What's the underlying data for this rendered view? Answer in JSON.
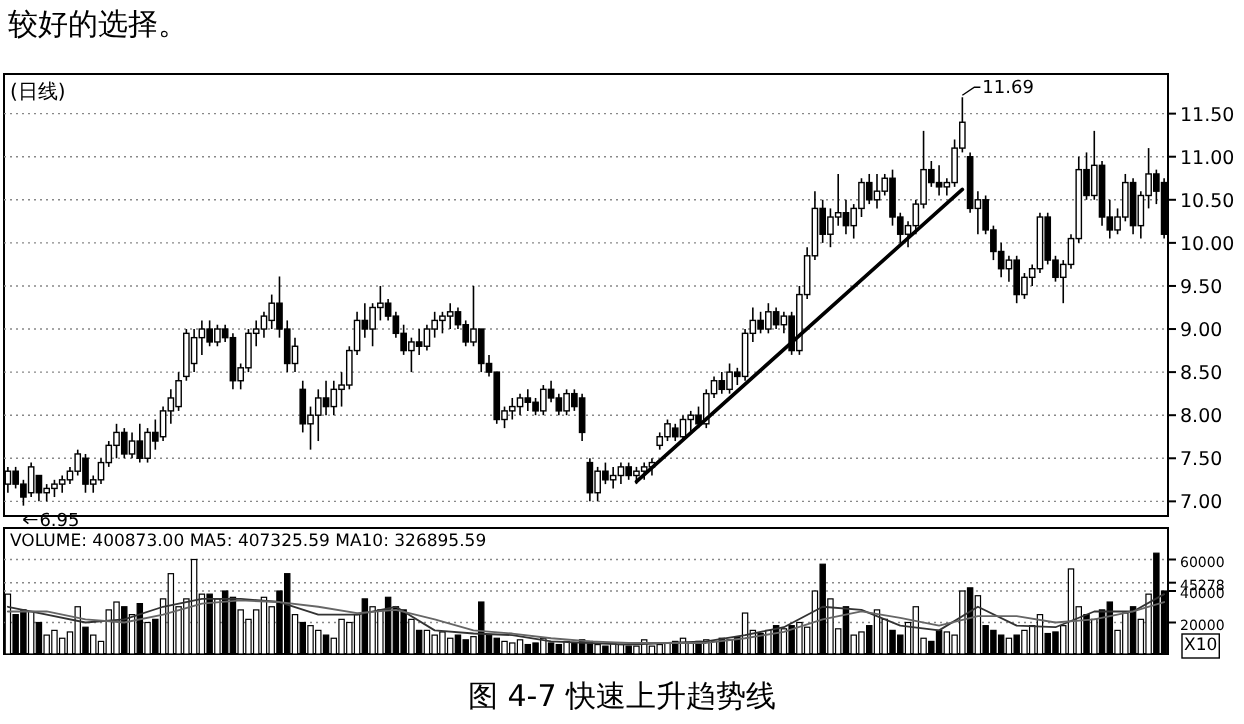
{
  "chart_data": [
    {
      "type": "candlestick",
      "title": "(日线)",
      "annotations": [
        "较好的选择。",
        "11.69",
        "6.95"
      ],
      "categories": [
        null,
        null,
        null,
        null,
        null,
        null,
        null,
        null,
        null,
        null,
        null,
        null,
        null,
        null,
        null,
        null,
        null,
        null,
        null,
        null,
        null,
        null,
        null,
        null,
        null,
        null,
        null,
        null,
        null,
        null,
        null,
        null,
        null,
        null,
        null,
        null,
        null,
        null,
        null,
        null,
        null,
        null,
        null,
        null,
        null,
        null,
        null,
        null,
        null,
        null,
        null,
        null,
        null,
        null,
        null,
        null,
        null,
        null,
        null,
        null,
        null,
        null,
        null,
        null,
        null,
        null,
        null,
        null,
        null,
        null,
        null,
        null,
        null,
        null,
        null,
        null,
        null,
        null,
        null,
        null,
        null,
        null,
        null,
        null,
        null,
        null,
        null,
        null,
        null,
        null,
        null,
        null,
        null,
        null,
        null,
        null,
        null,
        null,
        null,
        null,
        null,
        null,
        null,
        null,
        null,
        null,
        null,
        null,
        null,
        null,
        null,
        null,
        null,
        null,
        null,
        null,
        null,
        null,
        null,
        null,
        null,
        null,
        null,
        null,
        null,
        null,
        null,
        null,
        null,
        null,
        null,
        null,
        null,
        null,
        null,
        null,
        null,
        null,
        null,
        null,
        null,
        null,
        null,
        null,
        null,
        null,
        null,
        null,
        null,
        null
      ],
      "ohlc": [
        [
          7.2,
          7.4,
          7.1,
          7.35
        ],
        [
          7.35,
          7.4,
          7.15,
          7.2
        ],
        [
          7.2,
          7.25,
          6.95,
          7.05
        ],
        [
          7.1,
          7.45,
          7.05,
          7.4
        ],
        [
          7.3,
          7.3,
          7.0,
          7.1
        ],
        [
          7.1,
          7.2,
          7.0,
          7.15
        ],
        [
          7.15,
          7.25,
          7.05,
          7.2
        ],
        [
          7.2,
          7.3,
          7.1,
          7.25
        ],
        [
          7.25,
          7.4,
          7.2,
          7.35
        ],
        [
          7.35,
          7.6,
          7.3,
          7.55
        ],
        [
          7.5,
          7.55,
          7.1,
          7.2
        ],
        [
          7.2,
          7.3,
          7.1,
          7.25
        ],
        [
          7.25,
          7.5,
          7.2,
          7.45
        ],
        [
          7.45,
          7.7,
          7.4,
          7.65
        ],
        [
          7.65,
          7.9,
          7.5,
          7.8
        ],
        [
          7.8,
          7.85,
          7.5,
          7.55
        ],
        [
          7.55,
          7.8,
          7.5,
          7.7
        ],
        [
          7.7,
          7.9,
          7.45,
          7.5
        ],
        [
          7.5,
          7.85,
          7.45,
          7.8
        ],
        [
          7.8,
          7.95,
          7.6,
          7.7
        ],
        [
          7.75,
          8.1,
          7.7,
          8.05
        ],
        [
          8.05,
          8.3,
          7.9,
          8.2
        ],
        [
          8.1,
          8.5,
          8.05,
          8.4
        ],
        [
          8.45,
          9.0,
          8.4,
          8.95
        ],
        [
          8.6,
          9.0,
          8.5,
          8.9
        ],
        [
          8.9,
          9.1,
          8.7,
          9.0
        ],
        [
          9.0,
          9.1,
          8.8,
          8.85
        ],
        [
          8.85,
          9.05,
          8.8,
          9.0
        ],
        [
          9.0,
          9.05,
          8.85,
          8.9
        ],
        [
          8.9,
          8.95,
          8.3,
          8.4
        ],
        [
          8.4,
          8.6,
          8.3,
          8.55
        ],
        [
          8.55,
          9.0,
          8.5,
          8.95
        ],
        [
          8.95,
          9.1,
          8.8,
          9.0
        ],
        [
          9.0,
          9.2,
          8.9,
          9.15
        ],
        [
          9.1,
          9.4,
          9.0,
          9.3
        ],
        [
          9.3,
          9.61,
          8.9,
          9.0
        ],
        [
          9.0,
          9.1,
          8.5,
          8.6
        ],
        [
          8.6,
          8.9,
          8.5,
          8.8
        ],
        [
          8.3,
          8.4,
          7.8,
          7.9
        ],
        [
          7.9,
          8.1,
          7.6,
          8.0
        ],
        [
          8.0,
          8.3,
          7.7,
          8.2
        ],
        [
          8.2,
          8.4,
          8.0,
          8.1
        ],
        [
          8.1,
          8.4,
          8.0,
          8.3
        ],
        [
          8.3,
          8.5,
          8.1,
          8.35
        ],
        [
          8.35,
          8.8,
          8.3,
          8.75
        ],
        [
          8.75,
          9.2,
          8.7,
          9.1
        ],
        [
          9.1,
          9.3,
          8.9,
          9.0
        ],
        [
          9.0,
          9.3,
          8.8,
          9.25
        ],
        [
          9.25,
          9.5,
          9.1,
          9.3
        ],
        [
          9.3,
          9.35,
          9.1,
          9.15
        ],
        [
          9.15,
          9.2,
          8.9,
          8.95
        ],
        [
          8.95,
          9.05,
          8.7,
          8.75
        ],
        [
          8.75,
          8.9,
          8.5,
          8.85
        ],
        [
          8.85,
          9.0,
          8.7,
          8.8
        ],
        [
          8.8,
          9.05,
          8.75,
          9.0
        ],
        [
          9.0,
          9.2,
          8.9,
          9.1
        ],
        [
          9.1,
          9.2,
          8.95,
          9.15
        ],
        [
          9.15,
          9.3,
          9.0,
          9.2
        ],
        [
          9.2,
          9.25,
          9.0,
          9.05
        ],
        [
          9.05,
          9.1,
          8.8,
          8.85
        ],
        [
          8.85,
          9.5,
          8.8,
          9.0
        ],
        [
          9.0,
          9.0,
          8.5,
          8.6
        ],
        [
          8.6,
          8.7,
          8.45,
          8.5
        ],
        [
          8.5,
          8.5,
          7.9,
          7.95
        ],
        [
          7.95,
          8.1,
          7.85,
          8.05
        ],
        [
          8.05,
          8.2,
          7.95,
          8.1
        ],
        [
          8.1,
          8.25,
          8.0,
          8.2
        ],
        [
          8.2,
          8.3,
          8.05,
          8.15
        ],
        [
          8.15,
          8.2,
          8.0,
          8.05
        ],
        [
          8.05,
          8.35,
          8.0,
          8.3
        ],
        [
          8.3,
          8.4,
          8.15,
          8.2
        ],
        [
          8.2,
          8.25,
          8.0,
          8.05
        ],
        [
          8.05,
          8.3,
          8.0,
          8.25
        ],
        [
          8.25,
          8.3,
          8.05,
          8.1
        ],
        [
          8.2,
          8.25,
          7.7,
          7.8
        ],
        [
          7.45,
          7.5,
          7.0,
          7.1
        ],
        [
          7.1,
          7.4,
          7.0,
          7.35
        ],
        [
          7.35,
          7.45,
          7.2,
          7.25
        ],
        [
          7.25,
          7.4,
          7.15,
          7.3
        ],
        [
          7.3,
          7.45,
          7.2,
          7.4
        ],
        [
          7.4,
          7.45,
          7.25,
          7.3
        ],
        [
          7.3,
          7.4,
          7.2,
          7.35
        ],
        [
          7.35,
          7.45,
          7.25,
          7.4
        ],
        [
          7.4,
          7.5,
          7.3,
          7.45
        ],
        [
          7.65,
          7.8,
          7.6,
          7.75
        ],
        [
          7.75,
          7.95,
          7.7,
          7.9
        ],
        [
          7.85,
          7.9,
          7.7,
          7.75
        ],
        [
          7.75,
          8.0,
          7.7,
          7.95
        ],
        [
          7.95,
          8.05,
          7.8,
          8.0
        ],
        [
          8.0,
          8.1,
          7.85,
          7.9
        ],
        [
          7.9,
          8.3,
          7.85,
          8.25
        ],
        [
          8.25,
          8.45,
          8.2,
          8.4
        ],
        [
          8.4,
          8.5,
          8.25,
          8.3
        ],
        [
          8.3,
          8.6,
          8.25,
          8.5
        ],
        [
          8.5,
          8.55,
          8.35,
          8.45
        ],
        [
          8.45,
          9.0,
          8.4,
          8.95
        ],
        [
          8.95,
          9.25,
          8.85,
          9.1
        ],
        [
          9.1,
          9.2,
          8.95,
          9.0
        ],
        [
          9.0,
          9.3,
          8.95,
          9.2
        ],
        [
          9.2,
          9.25,
          9.0,
          9.05
        ],
        [
          9.05,
          9.2,
          8.95,
          9.15
        ],
        [
          9.15,
          9.2,
          8.7,
          8.75
        ],
        [
          8.75,
          9.5,
          8.7,
          9.4
        ],
        [
          9.4,
          9.95,
          9.35,
          9.85
        ],
        [
          9.85,
          10.6,
          9.8,
          10.4
        ],
        [
          10.4,
          10.5,
          10.0,
          10.1
        ],
        [
          10.1,
          10.4,
          9.95,
          10.3
        ],
        [
          10.3,
          10.8,
          10.2,
          10.35
        ],
        [
          10.35,
          10.5,
          10.1,
          10.2
        ],
        [
          10.2,
          10.45,
          10.05,
          10.4
        ],
        [
          10.4,
          10.75,
          10.3,
          10.7
        ],
        [
          10.7,
          10.8,
          10.45,
          10.5
        ],
        [
          10.5,
          10.8,
          10.4,
          10.6
        ],
        [
          10.6,
          10.8,
          10.55,
          10.75
        ],
        [
          10.75,
          10.85,
          10.2,
          10.3
        ],
        [
          10.3,
          10.35,
          10.0,
          10.1
        ],
        [
          10.1,
          10.25,
          9.95,
          10.2
        ],
        [
          10.2,
          10.5,
          10.1,
          10.45
        ],
        [
          10.45,
          11.3,
          10.4,
          10.85
        ],
        [
          10.85,
          10.95,
          10.65,
          10.7
        ],
        [
          10.7,
          10.9,
          10.55,
          10.65
        ],
        [
          10.65,
          10.75,
          10.55,
          10.7
        ],
        [
          10.7,
          11.2,
          10.65,
          11.1
        ],
        [
          11.1,
          11.69,
          11.05,
          11.4
        ],
        [
          11.0,
          11.05,
          10.35,
          10.4
        ],
        [
          10.4,
          10.6,
          10.1,
          10.5
        ],
        [
          10.5,
          10.55,
          10.1,
          10.15
        ],
        [
          10.15,
          10.2,
          9.8,
          9.9
        ],
        [
          9.9,
          10.0,
          9.6,
          9.7
        ],
        [
          9.7,
          9.85,
          9.55,
          9.8
        ],
        [
          9.8,
          9.85,
          9.3,
          9.4
        ],
        [
          9.4,
          9.65,
          9.35,
          9.6
        ],
        [
          9.6,
          9.75,
          9.5,
          9.7
        ],
        [
          9.7,
          10.35,
          9.65,
          10.3
        ],
        [
          10.3,
          10.35,
          9.75,
          9.8
        ],
        [
          9.8,
          9.85,
          9.55,
          9.6
        ],
        [
          9.6,
          9.8,
          9.3,
          9.75
        ],
        [
          9.75,
          10.1,
          9.7,
          10.05
        ],
        [
          10.05,
          11.0,
          10.0,
          10.85
        ],
        [
          10.85,
          11.05,
          10.5,
          10.55
        ],
        [
          10.55,
          11.3,
          10.5,
          10.9
        ],
        [
          10.9,
          10.95,
          10.2,
          10.3
        ],
        [
          10.3,
          10.5,
          10.05,
          10.15
        ],
        [
          10.15,
          10.4,
          10.1,
          10.3
        ],
        [
          10.3,
          10.8,
          10.25,
          10.7
        ],
        [
          10.7,
          10.75,
          10.1,
          10.2
        ],
        [
          10.2,
          10.6,
          10.05,
          10.55
        ],
        [
          10.55,
          11.1,
          10.4,
          10.8
        ],
        [
          10.8,
          10.85,
          10.45,
          10.6
        ],
        [
          10.7,
          10.75,
          10.05,
          10.1
        ]
      ],
      "series": [
        {
          "type": "line",
          "color": "#000000",
          "values": [
            null,
            null,
            null,
            null,
            null,
            null,
            null,
            null,
            null,
            null,
            null,
            null,
            null,
            null,
            null,
            null,
            null,
            null,
            null,
            null,
            null,
            null,
            null,
            null,
            null,
            null,
            null,
            null,
            null,
            null,
            null,
            null,
            null,
            null,
            null,
            null,
            null,
            null,
            null,
            null,
            null,
            null,
            null,
            null,
            null,
            null,
            null,
            null,
            null,
            null,
            null,
            null,
            null,
            null,
            null,
            null,
            null,
            null,
            null,
            null,
            null,
            null,
            null,
            null,
            null,
            null,
            null,
            null,
            null,
            null,
            null,
            null,
            null,
            null,
            null,
            null,
            null,
            null,
            null,
            null,
            null,
            7.23,
            null,
            null,
            null,
            null,
            null,
            null,
            null,
            null,
            null,
            null,
            null,
            null,
            null,
            null,
            null,
            null,
            null,
            null,
            null,
            null,
            null,
            null,
            null,
            null,
            null,
            null,
            null,
            null,
            null,
            null,
            null,
            null,
            null,
            null,
            null,
            null,
            null,
            null,
            null,
            null,
            null,
            10.62,
            null,
            null,
            null,
            null,
            null,
            null,
            null,
            null,
            null,
            null,
            null,
            null,
            null,
            null,
            null,
            null,
            null,
            null,
            null,
            null,
            null,
            null,
            null,
            null,
            null,
            null
          ]
        }
      ],
      "ylim": [
        6.83,
        11.96
      ],
      "yticks": [
        {
          "value": 7,
          "label": "7.00"
        },
        {
          "value": 7.5,
          "label": "7.50"
        },
        {
          "value": 8,
          "label": "8.00"
        },
        {
          "value": 8.5,
          "label": "8.50"
        },
        {
          "value": 9,
          "label": "9.00"
        },
        {
          "value": 9.5,
          "label": "9.50"
        },
        {
          "value": 10,
          "label": "10.00"
        },
        {
          "value": 10.5,
          "label": "10.50"
        },
        {
          "value": 11,
          "label": "11.00"
        },
        {
          "value": 11.5,
          "label": "11.50"
        }
      ],
      "grid": "y",
      "tick_labels": "y"
    },
    {
      "type": "bar",
      "title": "VOLUME: 400873.00 MA5: 407325.59 MA10: 326895.59",
      "ylabel": "X10",
      "annotations": [
        "图 4-7 快速上升趋势线"
      ],
      "categories": [
        null,
        null,
        null,
        null,
        null,
        null,
        null,
        null,
        null,
        null,
        null,
        null,
        null,
        null,
        null,
        null,
        null,
        null,
        null,
        null,
        null,
        null,
        null,
        null,
        null,
        null,
        null,
        null,
        null,
        null,
        null,
        null,
        null,
        null,
        null,
        null,
        null,
        null,
        null,
        null,
        null,
        null,
        null,
        null,
        null,
        null,
        null,
        null,
        null,
        null,
        null,
        null,
        null,
        null,
        null,
        null,
        null,
        null,
        null,
        null,
        null,
        null,
        null,
        null,
        null,
        null,
        null,
        null,
        null,
        null,
        null,
        null,
        null,
        null,
        null,
        null,
        null,
        null,
        null,
        null,
        null,
        null,
        null,
        null,
        null,
        null,
        null,
        null,
        null,
        null,
        null,
        null,
        null,
        null,
        null,
        null,
        null,
        null,
        null,
        null,
        null,
        null,
        null,
        null,
        null,
        null,
        null,
        null,
        null,
        null,
        null,
        null,
        null,
        null,
        null,
        null,
        null,
        null,
        null,
        null,
        null,
        null,
        null,
        null,
        null,
        null,
        null,
        null,
        null,
        null,
        null,
        null,
        null,
        null,
        null,
        null,
        null,
        null,
        null,
        null,
        null,
        null,
        null,
        null,
        null,
        null,
        null,
        null,
        null,
        null
      ],
      "series": [
        {
          "type": "bar",
          "values": [
            38000,
            25000,
            28000,
            27000,
            20000,
            12000,
            15000,
            10000,
            14000,
            30000,
            17000,
            12000,
            8000,
            28000,
            33000,
            30000,
            25000,
            32000,
            20000,
            22000,
            35000,
            51000,
            30000,
            35000,
            60000,
            38000,
            38000,
            35000,
            40000,
            36000,
            28000,
            22000,
            28000,
            36000,
            30000,
            40000,
            51000,
            25000,
            20000,
            18000,
            15000,
            12000,
            10000,
            22000,
            20000,
            25000,
            35000,
            30000,
            28000,
            36000,
            30000,
            28000,
            22000,
            15000,
            15000,
            12000,
            14000,
            10000,
            12000,
            9000,
            11000,
            33000,
            12000,
            10000,
            8000,
            7000,
            9000,
            6000,
            7000,
            10000,
            7000,
            6000,
            8000,
            7000,
            9000,
            8000,
            6000,
            5000,
            7000,
            6000,
            5000,
            5000,
            9000,
            5000,
            6000,
            7000,
            8000,
            10000,
            7000,
            8000,
            9000,
            8000,
            10000,
            9000,
            11000,
            26000,
            15000,
            13000,
            15000,
            18000,
            16000,
            18000,
            20000,
            17000,
            40000,
            57000,
            35000,
            16000,
            30000,
            12000,
            14000,
            18000,
            28000,
            22000,
            15000,
            12000,
            20000,
            30000,
            10000,
            8000,
            15000,
            14000,
            12000,
            40000,
            42000,
            37000,
            18000,
            15000,
            12000,
            10000,
            12000,
            15000,
            18000,
            25000,
            13000,
            14000,
            18000,
            54000,
            30000,
            25000,
            22000,
            28000,
            33000,
            15000,
            26000,
            30000,
            22000,
            38000,
            64000,
            40000
          ],
          "colors": [
            "#ffffff",
            "#000000",
            "#000000",
            "#ffffff",
            "#000000",
            "#ffffff",
            "#ffffff",
            "#ffffff",
            "#ffffff",
            "#ffffff",
            "#000000",
            "#ffffff",
            "#ffffff",
            "#ffffff",
            "#ffffff",
            "#000000",
            "#ffffff",
            "#000000",
            "#ffffff",
            "#000000",
            "#ffffff",
            "#ffffff",
            "#ffffff",
            "#ffffff",
            "#ffffff",
            "#ffffff",
            "#000000",
            "#ffffff",
            "#000000",
            "#000000",
            "#ffffff",
            "#ffffff",
            "#ffffff",
            "#ffffff",
            "#ffffff",
            "#000000",
            "#000000",
            "#ffffff",
            "#000000",
            "#ffffff",
            "#ffffff",
            "#000000",
            "#ffffff",
            "#ffffff",
            "#ffffff",
            "#ffffff",
            "#000000",
            "#ffffff",
            "#ffffff",
            "#000000",
            "#000000",
            "#000000",
            "#ffffff",
            "#000000",
            "#ffffff",
            "#ffffff",
            "#ffffff",
            "#ffffff",
            "#000000",
            "#000000",
            "#ffffff",
            "#000000",
            "#000000",
            "#000000",
            "#ffffff",
            "#ffffff",
            "#ffffff",
            "#000000",
            "#000000",
            "#ffffff",
            "#000000",
            "#000000",
            "#ffffff",
            "#000000",
            "#000000",
            "#000000",
            "#ffffff",
            "#000000",
            "#ffffff",
            "#ffffff",
            "#000000",
            "#ffffff",
            "#ffffff",
            "#ffffff",
            "#ffffff",
            "#ffffff",
            "#000000",
            "#ffffff",
            "#ffffff",
            "#000000",
            "#ffffff",
            "#ffffff",
            "#000000",
            "#ffffff",
            "#000000",
            "#ffffff",
            "#ffffff",
            "#000000",
            "#ffffff",
            "#000000",
            "#ffffff",
            "#000000",
            "#ffffff",
            "#ffffff",
            "#ffffff",
            "#000000",
            "#ffffff",
            "#ffffff",
            "#000000",
            "#ffffff",
            "#ffffff",
            "#000000",
            "#ffffff",
            "#ffffff",
            "#000000",
            "#000000",
            "#ffffff",
            "#ffffff",
            "#ffffff",
            "#000000",
            "#000000",
            "#ffffff",
            "#ffffff",
            "#ffffff",
            "#000000",
            "#ffffff",
            "#000000",
            "#000000",
            "#000000",
            "#ffffff",
            "#000000",
            "#ffffff",
            "#ffffff",
            "#ffffff",
            "#000000",
            "#000000",
            "#ffffff",
            "#ffffff",
            "#ffffff",
            "#000000",
            "#ffffff",
            "#000000",
            "#000000",
            "#ffffff",
            "#ffffff",
            "#000000",
            "#ffffff",
            "#ffffff",
            "#000000",
            "#000000"
          ]
        },
        {
          "type": "line",
          "color": "#333333",
          "values": [
            30000,
            null,
            null,
            null,
            null,
            25000,
            null,
            null,
            null,
            null,
            20000,
            null,
            null,
            null,
            null,
            22000,
            null,
            null,
            null,
            null,
            30000,
            null,
            null,
            null,
            null,
            35000,
            null,
            null,
            null,
            null,
            35000,
            null,
            null,
            null,
            null,
            33000,
            null,
            null,
            null,
            null,
            25000,
            null,
            null,
            null,
            null,
            25000,
            null,
            null,
            null,
            null,
            30000,
            null,
            null,
            null,
            null,
            15000,
            null,
            null,
            null,
            null,
            13000,
            null,
            null,
            null,
            null,
            12000,
            null,
            null,
            null,
            null,
            8000,
            null,
            null,
            null,
            null,
            7000,
            null,
            null,
            null,
            null,
            6000,
            null,
            null,
            null,
            null,
            7000,
            null,
            null,
            null,
            null,
            8000,
            null,
            null,
            null,
            null,
            12000,
            null,
            null,
            null,
            null,
            17000,
            null,
            null,
            null,
            null,
            30000,
            null,
            null,
            null,
            null,
            28000,
            null,
            null,
            null,
            null,
            18000,
            null,
            null,
            null,
            null,
            15000,
            null,
            null,
            null,
            null,
            30000,
            null,
            null,
            null,
            null,
            18000,
            null,
            null,
            null,
            null,
            17000,
            null,
            null,
            null,
            null,
            27000,
            null,
            null,
            null,
            null,
            27000,
            null,
            null,
            null,
            38000
          ]
        },
        {
          "type": "line",
          "color": "#666666",
          "values": [
            27000,
            null,
            null,
            null,
            null,
            27000,
            null,
            null,
            null,
            null,
            22000,
            null,
            null,
            null,
            null,
            20000,
            null,
            null,
            null,
            null,
            25000,
            null,
            null,
            null,
            null,
            32000,
            null,
            null,
            null,
            null,
            34000,
            null,
            null,
            null,
            null,
            33000,
            null,
            null,
            null,
            null,
            30000,
            null,
            null,
            null,
            null,
            26000,
            null,
            null,
            null,
            null,
            28000,
            null,
            null,
            null,
            null,
            22000,
            null,
            null,
            null,
            null,
            15000,
            null,
            null,
            null,
            null,
            13000,
            null,
            null,
            null,
            null,
            10000,
            null,
            null,
            null,
            null,
            8000,
            null,
            null,
            null,
            null,
            7000,
            null,
            null,
            null,
            null,
            7000,
            null,
            null,
            null,
            null,
            7000,
            null,
            null,
            null,
            null,
            10000,
            null,
            null,
            null,
            null,
            14000,
            null,
            null,
            null,
            null,
            22000,
            null,
            null,
            null,
            null,
            27000,
            null,
            null,
            null,
            null,
            23000,
            null,
            null,
            null,
            null,
            18000,
            null,
            null,
            null,
            null,
            24000,
            null,
            null,
            null,
            null,
            24000,
            null,
            null,
            null,
            null,
            20000,
            null,
            null,
            null,
            null,
            22000,
            null,
            null,
            null,
            null,
            27000,
            null,
            null,
            null,
            33000
          ]
        }
      ],
      "ylim": [
        0,
        80000
      ],
      "yticks": [
        20000,
        40000,
        45278,
        60000
      ],
      "grid": "y",
      "tick_labels": "y"
    }
  ]
}
